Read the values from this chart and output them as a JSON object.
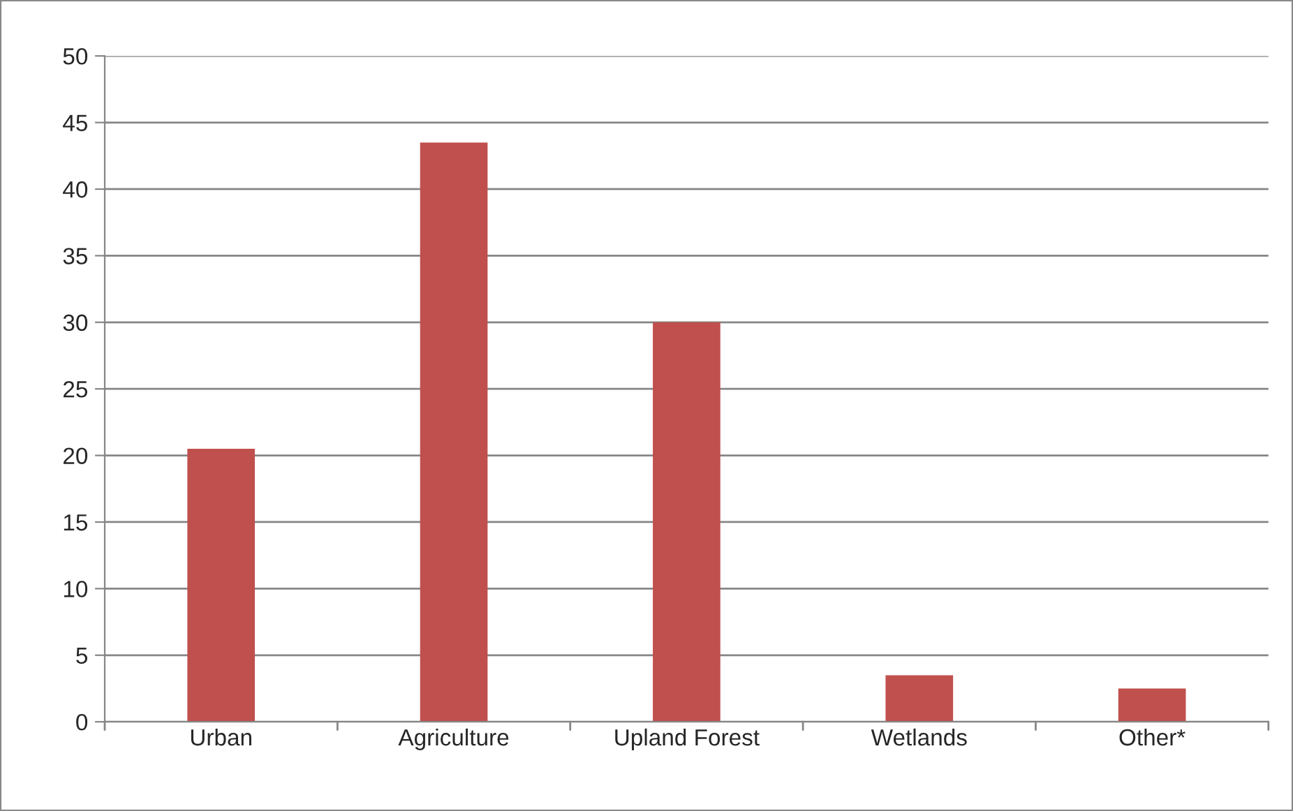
{
  "chart_data": {
    "type": "bar",
    "categories": [
      "Urban",
      "Agriculture",
      "Upland Forest",
      "Wetlands",
      "Other*"
    ],
    "values": [
      20.5,
      43.5,
      30,
      3.5,
      2.5
    ],
    "color": "#c0504d",
    "ylim": [
      0,
      50
    ],
    "yticks": [
      0,
      5,
      10,
      15,
      20,
      25,
      30,
      35,
      40,
      45,
      50
    ],
    "grid": "y"
  }
}
